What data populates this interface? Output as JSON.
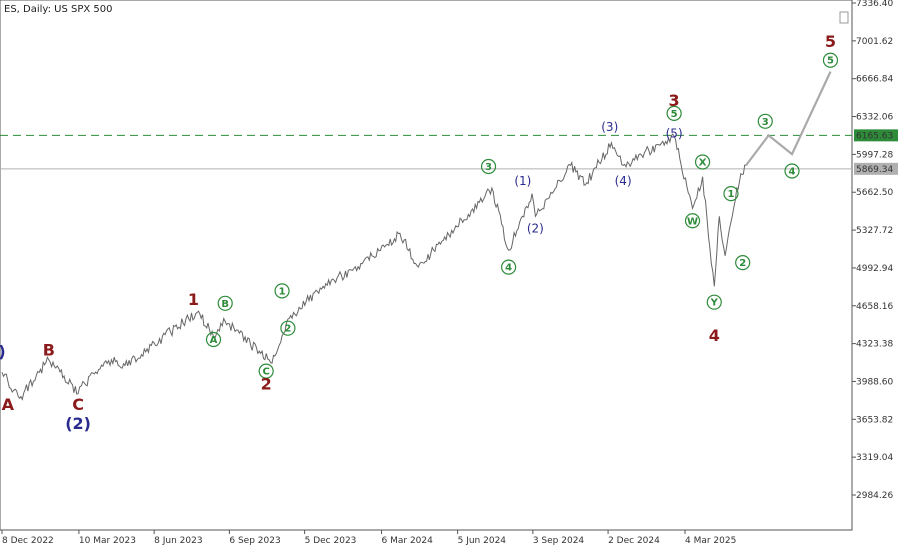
{
  "header": {
    "title": "ES, Daily:  US SPX 500"
  },
  "chart_data": {
    "type": "line",
    "title": "ES, Daily:  US SPX 500",
    "xlabel": "",
    "ylabel": "",
    "ylim": [
      2800,
      7400
    ],
    "x_ticks": [
      "8 Dec 2022",
      "10 Mar 2023",
      "8 Jun 2023",
      "6 Sep 2023",
      "5 Dec 2023",
      "6 Mar 2024",
      "5 Jun 2024",
      "3 Sep 2024",
      "2 Dec 2024",
      "4 Mar 2025"
    ],
    "y_ticks": [
      "7336.40",
      "7001.62",
      "6666.84",
      "6332.06",
      "5997.28",
      "5662.50",
      "5327.72",
      "4992.94",
      "4658.16",
      "4323.38",
      "3988.60",
      "3653.82",
      "3319.04",
      "2984.26"
    ],
    "levels": [
      {
        "value": 6165.63,
        "label": "6165.63",
        "color": "#2e8b3a",
        "style": "dashed"
      },
      {
        "value": 5869.34,
        "label": "5869.34",
        "color": "#b0b0b0",
        "style": "solid"
      }
    ],
    "series": [
      {
        "x": [
          "8 Dec 2022",
          "15 Dec 2022",
          "29 Dec 2022",
          "2 Feb 2023",
          "9 Mar 2023",
          "13 Mar 2023",
          "18 Apr 2023",
          "4 May 2023",
          "31 Jul 2023",
          "18 Aug 2023",
          "1 Sep 2023",
          "27 Oct 2023",
          "15 Nov 2023",
          "27 Dec 2023",
          "12 Feb 2024",
          "28 Mar 2024",
          "19 Apr 2024",
          "16 Jul 2024",
          "5 Aug 2024",
          "2 Sep 2024",
          "6 Sep 2024",
          "18 Oct 2024",
          "5 Nov 2024",
          "6 Dec 2024",
          "20 Dec 2024",
          "19 Feb 2025",
          "13 Mar 2025",
          "25 Mar 2025",
          "8 Apr 2025",
          "14 Apr 2025",
          "21 Apr 2025",
          "5 May 2025",
          "16 May 2025"
        ],
        "values": [
          4070,
          3990,
          3840,
          4180,
          3880,
          3950,
          4180,
          4130,
          4610,
          4380,
          4520,
          4150,
          4540,
          4830,
          5030,
          5300,
          5000,
          5700,
          5150,
          5650,
          5450,
          5900,
          5730,
          6100,
          5900,
          6160,
          5520,
          5800,
          4830,
          5450,
          5100,
          5700,
          5900
        ],
        "color": "#666666"
      },
      {
        "x": [
          "16 May 2025",
          "12 Jun 2025",
          "10 Jul 2025",
          "25 Aug 2025"
        ],
        "values": [
          5900,
          6165,
          6000,
          6730
        ],
        "color": "#aaaaaa"
      }
    ],
    "wave_labels": [
      {
        "text": "A",
        "style": "plain",
        "color": "#8b1a1a",
        "x": "15 Dec 2022",
        "y": 3790
      },
      {
        "text": "B",
        "style": "plain",
        "color": "#8b1a1a",
        "x": "2 Feb 2023",
        "y": 4270
      },
      {
        "text": "C",
        "style": "plain",
        "color": "#8b1a1a",
        "x": "9 Mar 2023",
        "y": 3790
      },
      {
        "text": ")",
        "style": "plain",
        "color": "#2b2b8f",
        "x": "8 Dec 2022",
        "y": 4260
      },
      {
        "text": "(2)",
        "style": "plain",
        "color": "#2b2b8f",
        "x": "9 Mar 2023",
        "y": 3620
      },
      {
        "text": "1",
        "style": "plain",
        "color": "#8b1a1a",
        "x": "25 Jul 2023",
        "y": 4720
      },
      {
        "text": "A",
        "style": "circle",
        "color": "#2e8b3a",
        "x": "18 Aug 2023",
        "y": 4360
      },
      {
        "text": "B",
        "style": "circle",
        "color": "#2e8b3a",
        "x": "1 Sep 2023",
        "y": 4680
      },
      {
        "text": "C",
        "style": "circle",
        "color": "#2e8b3a",
        "x": "20 Oct 2023",
        "y": 4080
      },
      {
        "text": "2",
        "style": "plain",
        "color": "#8b1a1a",
        "x": "20 Oct 2023",
        "y": 3970
      },
      {
        "text": "1",
        "style": "circle",
        "color": "#2e8b3a",
        "x": "8 Nov 2023",
        "y": 4790
      },
      {
        "text": "2",
        "style": "circle",
        "color": "#2e8b3a",
        "x": "15 Nov 2023",
        "y": 4460
      },
      {
        "text": "3",
        "style": "circle",
        "color": "#2e8b3a",
        "x": "12 Jul 2024",
        "y": 5890
      },
      {
        "text": "4",
        "style": "circle",
        "color": "#2e8b3a",
        "x": "5 Aug 2024",
        "y": 5000
      },
      {
        "text": "(1)",
        "style": "paren",
        "color": "#2b2b8f",
        "x": "22 Aug 2024",
        "y": 5760
      },
      {
        "text": "(2)",
        "style": "paren",
        "color": "#2b2b8f",
        "x": "6 Sep 2024",
        "y": 5340
      },
      {
        "text": "(3)",
        "style": "paren",
        "color": "#2b2b8f",
        "x": "4 Dec 2024",
        "y": 6240
      },
      {
        "text": "(4)",
        "style": "paren",
        "color": "#2b2b8f",
        "x": "20 Dec 2024",
        "y": 5760
      },
      {
        "text": "(5)",
        "style": "paren",
        "color": "#2b2b8f",
        "x": "19 Feb 2025",
        "y": 6180
      },
      {
        "text": "5",
        "style": "circle",
        "color": "#2e8b3a",
        "x": "19 Feb 2025",
        "y": 6360
      },
      {
        "text": "3",
        "style": "plain",
        "color": "#8b1a1a",
        "x": "19 Feb 2025",
        "y": 6480
      },
      {
        "text": "W",
        "style": "circle",
        "color": "#2e8b3a",
        "x": "13 Mar 2025",
        "y": 5410
      },
      {
        "text": "X",
        "style": "circle",
        "color": "#2e8b3a",
        "x": "25 Mar 2025",
        "y": 5930
      },
      {
        "text": "1",
        "style": "circle",
        "color": "#2e8b3a",
        "x": "28 Apr 2025",
        "y": 5650
      },
      {
        "text": "Y",
        "style": "circle",
        "color": "#2e8b3a",
        "x": "8 Apr 2025",
        "y": 4690
      },
      {
        "text": "4",
        "style": "plain",
        "color": "#8b1a1a",
        "x": "8 Apr 2025",
        "y": 4400
      },
      {
        "text": "2",
        "style": "circle",
        "color": "#2e8b3a",
        "x": "12 May 2025",
        "y": 5040
      },
      {
        "text": "3",
        "style": "circle",
        "color": "#2e8b3a",
        "x": "8 Jun 2025",
        "y": 6290
      },
      {
        "text": "4",
        "style": "circle",
        "color": "#2e8b3a",
        "x": "10 Jul 2025",
        "y": 5850
      },
      {
        "text": "5",
        "style": "circle",
        "color": "#2e8b3a",
        "x": "25 Aug 2025",
        "y": 6830
      },
      {
        "text": "5",
        "style": "plain",
        "color": "#8b1a1a",
        "x": "25 Aug 2025",
        "y": 7000
      }
    ]
  }
}
